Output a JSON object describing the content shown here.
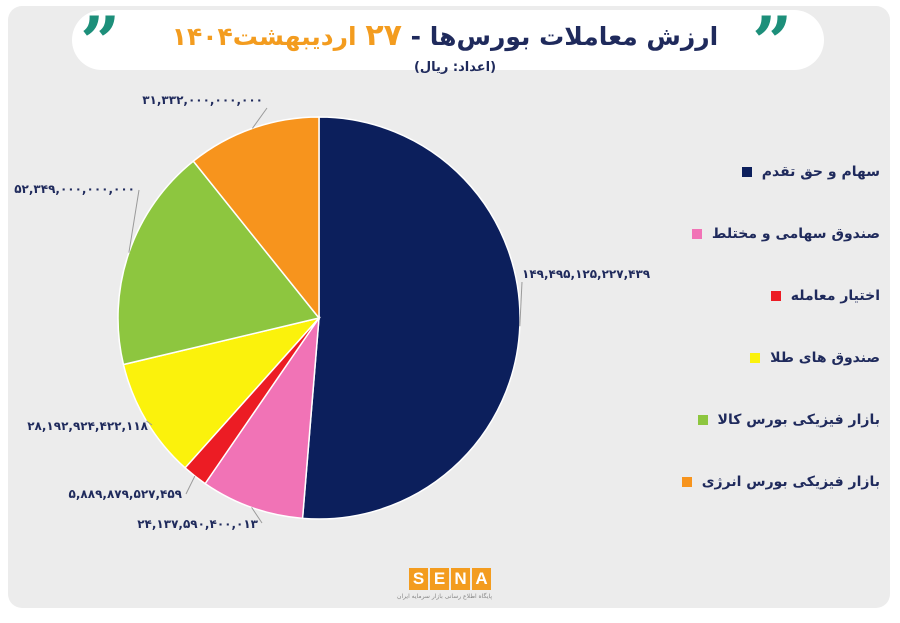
{
  "title": {
    "main": "ارزش معاملات بورس‌ها -",
    "day": "۲۷",
    "month": "اردیبهشت",
    "year": "۱۴۰۴",
    "unit": "(اعداد: ریال)"
  },
  "quote_glyph": "”",
  "colors": {
    "background": "#ececec",
    "title": "#1f2a5c",
    "accent": "#f39c1f",
    "quote": "#1d8f7a"
  },
  "chart_data": {
    "type": "pie",
    "title": "ارزش معاملات بورس‌ها - ۲۷ اردیبهشت ۱۴۰۴",
    "unit": "ریال",
    "slices": [
      {
        "name": "سهام و حق تقدم",
        "value": 149495125227439,
        "label": "۱۴۹,۴۹۵,۱۲۵,۲۲۷,۴۳۹",
        "color": "#0c1f5c"
      },
      {
        "name": "صندوق سهامی و مختلط",
        "value": 24137590400013,
        "label": "۲۴,۱۳۷,۵۹۰,۴۰۰,۰۱۳",
        "color": "#f173b6"
      },
      {
        "name": "اختیار معامله",
        "value": 5889879527459,
        "label": "۵,۸۸۹,۸۷۹,۵۲۷,۴۵۹",
        "color": "#ec1c24"
      },
      {
        "name": "صندوق های طلا",
        "value": 28192924422118,
        "label": "۲۸,۱۹۲,۹۲۴,۴۲۲,۱۱۸",
        "color": "#fbf20c"
      },
      {
        "name": "بازار فیزیکی بورس کالا",
        "value": 52349000000000,
        "label": "۵۲,۳۴۹,۰۰۰,۰۰۰,۰۰۰",
        "color": "#8dc63f"
      },
      {
        "name": "بازار فیزیکی بورس انرژی",
        "value": 31332000000000,
        "label": "۳۱,۳۳۲,۰۰۰,۰۰۰,۰۰۰",
        "color": "#f7941d"
      }
    ]
  },
  "footer": {
    "logo_letters": [
      "S",
      "E",
      "N",
      "A"
    ],
    "tagline": "پایگاه اطلاع رسانی بازار سرمایه ایران"
  }
}
